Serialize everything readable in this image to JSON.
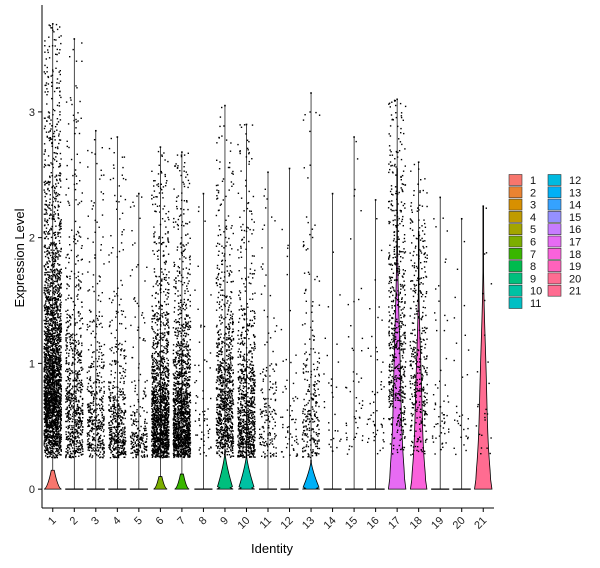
{
  "chart_data": {
    "type": "violin",
    "xlabel": "Identity",
    "ylabel": "Expression Level",
    "ylim": [
      -0.15,
      3.85
    ],
    "yticks": [
      0,
      1,
      2,
      3
    ],
    "grid": false,
    "legend_position": "right",
    "categories": [
      "1",
      "2",
      "3",
      "4",
      "5",
      "6",
      "7",
      "8",
      "9",
      "10",
      "11",
      "12",
      "13",
      "14",
      "15",
      "16",
      "17",
      "18",
      "19",
      "20",
      "21"
    ],
    "colors": [
      "#F8766D",
      "#EA8331",
      "#D89000",
      "#C09B00",
      "#A3A500",
      "#7CAE00",
      "#39B600",
      "#00BB4E",
      "#00BF7D",
      "#00C1A3",
      "#00BFC4",
      "#00BAE0",
      "#00B0F6",
      "#35A2FF",
      "#9590FF",
      "#C77CFF",
      "#E76BF3",
      "#FA62DB",
      "#FF62BC",
      "#FF6C91",
      "#FF6C91"
    ],
    "series": [
      {
        "name": "1",
        "max": 3.7,
        "points": 2600,
        "median": 0.9,
        "violin_height": 0.15,
        "violin_width": 0.9
      },
      {
        "name": "2",
        "max": 3.58,
        "points": 700,
        "median": 0.7,
        "violin_height": 0.0,
        "violin_width": 0.0
      },
      {
        "name": "3",
        "max": 2.85,
        "points": 420,
        "median": 0.6,
        "violin_height": 0.0,
        "violin_width": 0.0
      },
      {
        "name": "4",
        "max": 2.8,
        "points": 500,
        "median": 0.5,
        "violin_height": 0.0,
        "violin_width": 0.0
      },
      {
        "name": "5",
        "max": 2.35,
        "points": 220,
        "median": 0.4,
        "violin_height": 0.0,
        "violin_width": 0.0
      },
      {
        "name": "6",
        "max": 2.72,
        "points": 1500,
        "median": 0.6,
        "violin_height": 0.1,
        "violin_width": 0.7
      },
      {
        "name": "7",
        "max": 2.68,
        "points": 1400,
        "median": 0.6,
        "violin_height": 0.12,
        "violin_width": 0.75
      },
      {
        "name": "8",
        "max": 2.35,
        "points": 60,
        "median": 0.5,
        "violin_height": 0.0,
        "violin_width": 0.0
      },
      {
        "name": "9",
        "max": 3.05,
        "points": 900,
        "median": 0.7,
        "violin_height": 0.3,
        "violin_width": 0.85
      },
      {
        "name": "10",
        "max": 2.9,
        "points": 850,
        "median": 0.6,
        "violin_height": 0.28,
        "violin_width": 0.85
      },
      {
        "name": "11",
        "max": 2.52,
        "points": 160,
        "median": 0.5,
        "violin_height": 0.0,
        "violin_width": 0.0
      },
      {
        "name": "12",
        "max": 2.55,
        "points": 60,
        "median": 0.5,
        "violin_height": 0.0,
        "violin_width": 0.0
      },
      {
        "name": "13",
        "max": 3.15,
        "points": 260,
        "median": 0.6,
        "violin_height": 0.23,
        "violin_width": 0.9
      },
      {
        "name": "14",
        "max": 2.35,
        "points": 30,
        "median": 0.5,
        "violin_height": 0.0,
        "violin_width": 0.0
      },
      {
        "name": "15",
        "max": 2.8,
        "points": 50,
        "median": 0.6,
        "violin_height": 0.0,
        "violin_width": 0.0
      },
      {
        "name": "16",
        "max": 2.3,
        "points": 50,
        "median": 0.5,
        "violin_height": 0.0,
        "violin_width": 0.0
      },
      {
        "name": "17",
        "max": 3.1,
        "points": 600,
        "median": 1.2,
        "violin_height": 2.55,
        "violin_width": 0.9
      },
      {
        "name": "18",
        "max": 2.6,
        "points": 380,
        "median": 1.0,
        "violin_height": 2.05,
        "violin_width": 0.85
      },
      {
        "name": "19",
        "max": 2.32,
        "points": 60,
        "median": 0.6,
        "violin_height": 0.0,
        "violin_width": 0.0
      },
      {
        "name": "20",
        "max": 2.15,
        "points": 30,
        "median": 0.6,
        "violin_height": 0.0,
        "violin_width": 0.0
      },
      {
        "name": "21",
        "max": 2.25,
        "points": 25,
        "median": 0.8,
        "violin_height": 2.25,
        "violin_width": 0.9
      }
    ]
  }
}
